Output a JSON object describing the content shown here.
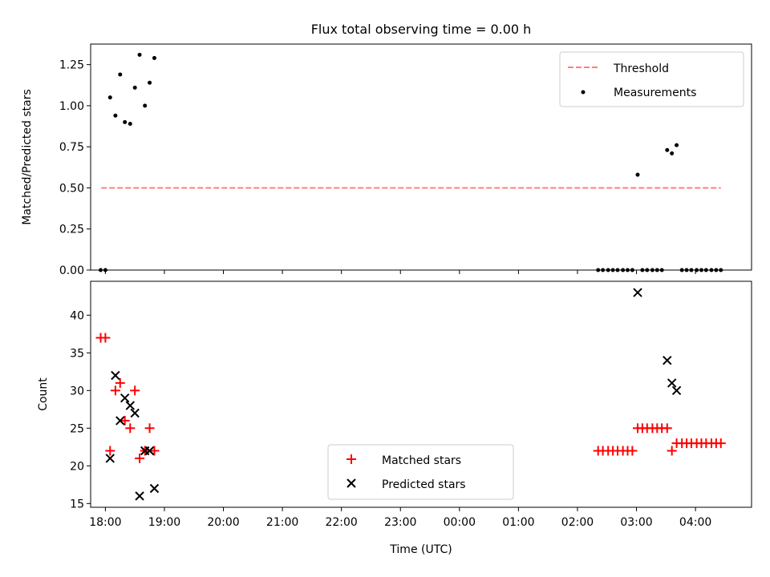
{
  "title": "Flux total observing time = 0.00 h",
  "colors": {
    "threshold": "#ff7f7f",
    "measurements": "#000000",
    "matched": "#ff0000",
    "predicted": "#000000"
  },
  "chart_data": [
    {
      "type": "scatter",
      "ylabel": "Matched/Predicted stars",
      "xlim": [
        17.75,
        28.95
      ],
      "ylim": [
        0,
        1.375
      ],
      "ytick_values": [
        0,
        0.25,
        0.5,
        0.75,
        1.0,
        1.25
      ],
      "ytick_labels": [
        "0.00",
        "0.25",
        "0.50",
        "0.75",
        "1.00",
        "1.25"
      ],
      "legend_position": "top-right",
      "threshold": {
        "name": "Threshold",
        "y": 0.5,
        "x_range": [
          17.93,
          28.43
        ]
      },
      "series": [
        {
          "name": "Measurements",
          "marker": "dot",
          "points": [
            [
              17.92,
              0
            ],
            [
              18.0,
              0
            ],
            [
              18.08,
              1.05
            ],
            [
              18.17,
              0.94
            ],
            [
              18.25,
              1.19
            ],
            [
              18.33,
              0.9
            ],
            [
              18.42,
              0.89
            ],
            [
              18.5,
              1.11
            ],
            [
              18.58,
              1.31
            ],
            [
              18.67,
              1.0
            ],
            [
              18.75,
              1.14
            ],
            [
              18.83,
              1.29
            ],
            [
              26.35,
              0
            ],
            [
              26.43,
              0
            ],
            [
              26.52,
              0
            ],
            [
              26.6,
              0
            ],
            [
              26.68,
              0
            ],
            [
              26.77,
              0
            ],
            [
              26.85,
              0
            ],
            [
              26.93,
              0
            ],
            [
              27.02,
              0.58
            ],
            [
              27.1,
              0
            ],
            [
              27.18,
              0
            ],
            [
              27.27,
              0
            ],
            [
              27.35,
              0
            ],
            [
              27.43,
              0
            ],
            [
              27.52,
              0.73
            ],
            [
              27.6,
              0.71
            ],
            [
              27.68,
              0.76
            ],
            [
              27.77,
              0
            ],
            [
              27.85,
              0
            ],
            [
              27.93,
              0
            ],
            [
              28.02,
              0
            ],
            [
              28.1,
              0
            ],
            [
              28.18,
              0
            ],
            [
              28.27,
              0
            ],
            [
              28.35,
              0
            ],
            [
              28.43,
              0
            ]
          ]
        }
      ]
    },
    {
      "type": "scatter",
      "xlabel": "Time (UTC)",
      "ylabel": "Count",
      "xlim": [
        17.75,
        28.95
      ],
      "ylim": [
        14.5,
        44.5
      ],
      "ytick_values": [
        15,
        20,
        25,
        30,
        35,
        40
      ],
      "ytick_labels": [
        "15",
        "20",
        "25",
        "30",
        "35",
        "40"
      ],
      "xtick_values": [
        18,
        19,
        20,
        21,
        22,
        23,
        24,
        25,
        26,
        27,
        28
      ],
      "xtick_labels": [
        "18:00",
        "19:00",
        "20:00",
        "21:00",
        "22:00",
        "23:00",
        "00:00",
        "01:00",
        "02:00",
        "03:00",
        "04:00"
      ],
      "legend_position": "lower-center",
      "series": [
        {
          "name": "Matched stars",
          "marker": "plus",
          "points": [
            [
              17.92,
              37
            ],
            [
              18.0,
              37
            ],
            [
              18.08,
              22
            ],
            [
              18.17,
              30
            ],
            [
              18.25,
              31
            ],
            [
              18.33,
              26
            ],
            [
              18.42,
              25
            ],
            [
              18.5,
              30
            ],
            [
              18.58,
              21
            ],
            [
              18.67,
              22
            ],
            [
              18.75,
              25
            ],
            [
              18.83,
              22
            ],
            [
              26.35,
              22
            ],
            [
              26.43,
              22
            ],
            [
              26.52,
              22
            ],
            [
              26.6,
              22
            ],
            [
              26.68,
              22
            ],
            [
              26.77,
              22
            ],
            [
              26.85,
              22
            ],
            [
              26.93,
              22
            ],
            [
              27.02,
              25
            ],
            [
              27.1,
              25
            ],
            [
              27.18,
              25
            ],
            [
              27.27,
              25
            ],
            [
              27.35,
              25
            ],
            [
              27.43,
              25
            ],
            [
              27.52,
              25
            ],
            [
              27.6,
              22
            ],
            [
              27.68,
              23
            ],
            [
              27.77,
              23
            ],
            [
              27.85,
              23
            ],
            [
              27.93,
              23
            ],
            [
              28.02,
              23
            ],
            [
              28.1,
              23
            ],
            [
              28.18,
              23
            ],
            [
              28.27,
              23
            ],
            [
              28.35,
              23
            ],
            [
              28.43,
              23
            ]
          ]
        },
        {
          "name": "Predicted stars",
          "marker": "x",
          "points": [
            [
              18.08,
              21
            ],
            [
              18.17,
              32
            ],
            [
              18.25,
              26
            ],
            [
              18.33,
              29
            ],
            [
              18.42,
              28
            ],
            [
              18.5,
              27
            ],
            [
              18.58,
              16
            ],
            [
              18.67,
              22
            ],
            [
              18.75,
              22
            ],
            [
              18.83,
              17
            ],
            [
              27.02,
              43
            ],
            [
              27.52,
              34
            ],
            [
              27.6,
              31
            ],
            [
              27.68,
              30
            ]
          ]
        }
      ]
    }
  ]
}
